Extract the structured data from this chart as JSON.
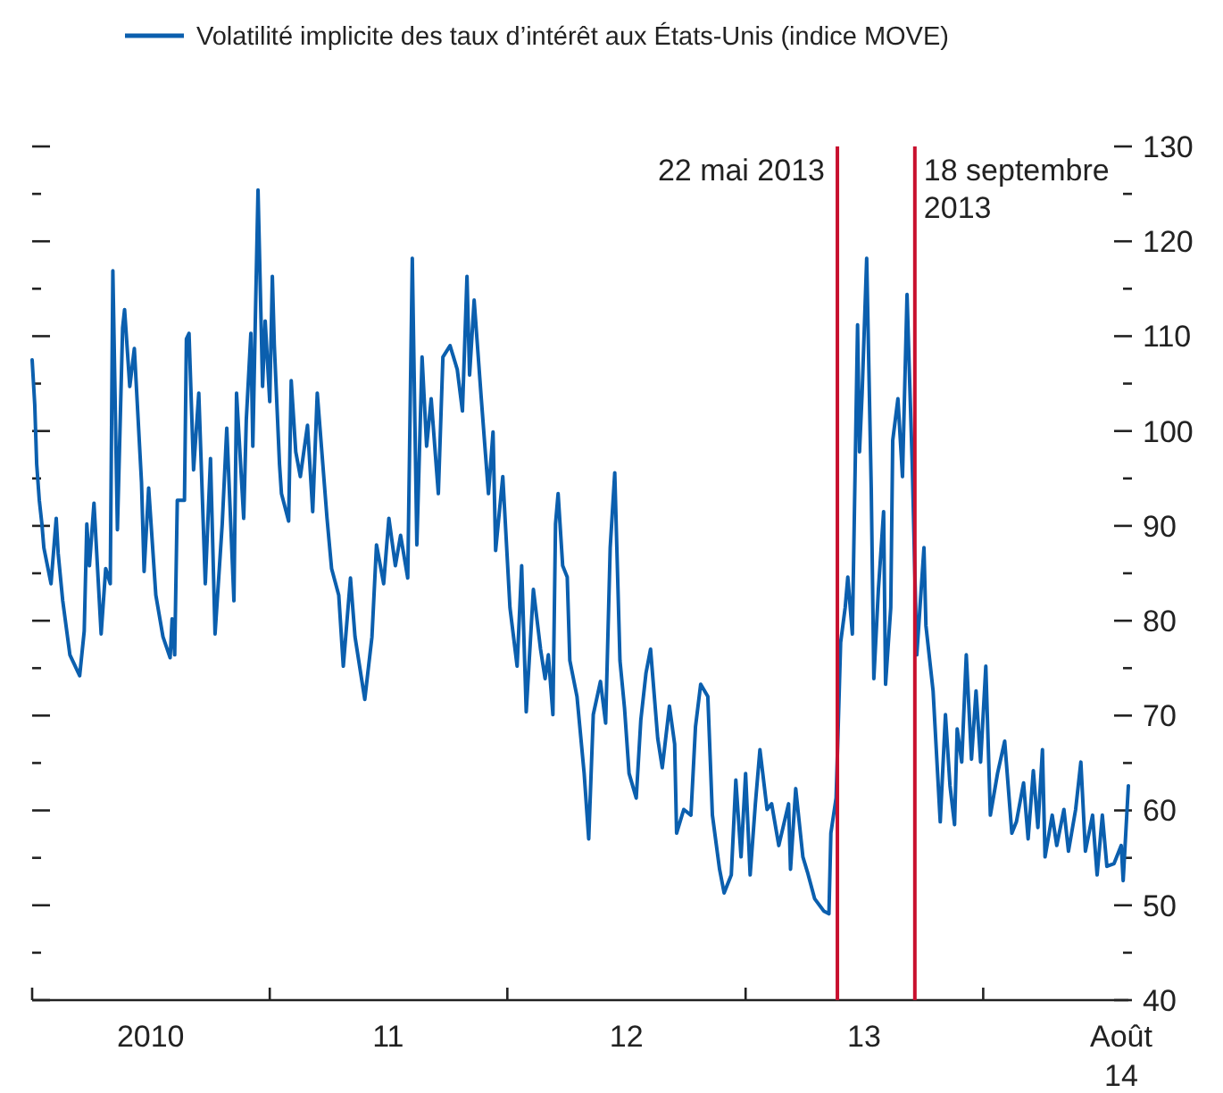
{
  "chart_data": {
    "type": "line",
    "legend": "top",
    "xlim": [
      "2010-01-01",
      "2014-08-12"
    ],
    "xticks": [
      {
        "value": "2010-01-01",
        "label": null
      },
      {
        "value": "2010-07-02",
        "label": "2010"
      },
      {
        "value": "2011-01-01",
        "label": null
      },
      {
        "value": "2011-07-02",
        "label": "11"
      },
      {
        "value": "2012-01-01",
        "label": null
      },
      {
        "value": "2012-07-02",
        "label": "12"
      },
      {
        "value": "2013-01-01",
        "label": null
      },
      {
        "value": "2013-07-02",
        "label": "13"
      },
      {
        "value": "2014-01-01",
        "label": null
      },
      {
        "value": "2014-08-01",
        "label": "Août\n14"
      }
    ],
    "ylim": [
      40,
      130
    ],
    "yticks": [
      40,
      {
        "value": 45,
        "label": null
      },
      50,
      {
        "value": 55,
        "label": null
      },
      60,
      {
        "value": 65,
        "label": null
      },
      70,
      {
        "value": 75,
        "label": null
      },
      80,
      {
        "value": 85,
        "label": null
      },
      90,
      {
        "value": 95,
        "label": null
      },
      100,
      {
        "value": 105,
        "label": null
      },
      110,
      {
        "value": 115,
        "label": null
      },
      120,
      {
        "value": 125,
        "label": null
      },
      130
    ],
    "ref_lines": [
      {
        "axis": "x",
        "value": "2013-05-22",
        "label": "22 mai 2013",
        "color": "#c8102e"
      },
      {
        "axis": "x",
        "value": "2013-09-18",
        "label": "18 septembre\n2013",
        "color": "#c8102e"
      }
    ],
    "x": [
      "2010-01-01",
      "2010-01-05",
      "2010-01-08",
      "2010-01-12",
      "2010-01-16",
      "2010-01-19",
      "2010-01-30",
      "2010-02-07",
      "2010-02-10",
      "2010-02-17",
      "2010-02-28",
      "2010-03-15",
      "2010-03-22",
      "2010-03-26",
      "2010-03-30",
      "2010-04-06",
      "2010-04-17",
      "2010-04-24",
      "2010-05-01",
      "2010-05-05",
      "2010-05-12",
      "2010-05-20",
      "2010-05-23",
      "2010-05-31",
      "2010-06-07",
      "2010-06-18",
      "2010-06-22",
      "2010-06-29",
      "2010-07-10",
      "2010-07-21",
      "2010-08-01",
      "2010-08-04",
      "2010-08-08",
      "2010-08-12",
      "2010-08-23",
      "2010-08-26",
      "2010-08-30",
      "2010-09-06",
      "2010-09-14",
      "2010-09-24",
      "2010-10-02",
      "2010-10-09",
      "2010-10-20",
      "2010-10-27",
      "2010-11-07",
      "2010-11-11",
      "2010-11-22",
      "2010-11-26",
      "2010-12-03",
      "2010-12-06",
      "2010-12-10",
      "2010-12-14",
      "2010-12-21",
      "2010-12-25",
      "2011-01-01",
      "2011-01-05",
      "2011-01-08",
      "2011-01-16",
      "2011-01-19",
      "2011-01-30",
      "2011-02-03",
      "2011-02-10",
      "2011-02-17",
      "2011-02-28",
      "2011-03-08",
      "2011-03-15",
      "2011-03-30",
      "2011-04-06",
      "2011-04-17",
      "2011-04-24",
      "2011-05-05",
      "2011-05-12",
      "2011-05-27",
      "2011-06-07",
      "2011-06-14",
      "2011-06-25",
      "2011-07-03",
      "2011-07-13",
      "2011-07-21",
      "2011-08-01",
      "2011-08-08",
      "2011-08-12",
      "2011-08-15",
      "2011-08-23",
      "2011-08-30",
      "2011-09-06",
      "2011-09-17",
      "2011-09-24",
      "2011-10-05",
      "2011-10-16",
      "2011-10-24",
      "2011-10-31",
      "2011-11-04",
      "2011-11-11",
      "2011-11-22",
      "2011-12-03",
      "2011-12-10",
      "2011-12-14",
      "2011-12-25",
      "2012-01-05",
      "2012-01-16",
      "2012-01-23",
      "2012-01-30",
      "2012-02-10",
      "2012-02-21",
      "2012-02-28",
      "2012-03-04",
      "2012-03-11",
      "2012-03-15",
      "2012-03-19",
      "2012-03-26",
      "2012-04-02",
      "2012-04-06",
      "2012-04-17",
      "2012-04-28",
      "2012-05-05",
      "2012-05-12",
      "2012-05-23",
      "2012-05-31",
      "2012-06-07",
      "2012-06-14",
      "2012-06-22",
      "2012-06-29",
      "2012-07-06",
      "2012-07-17",
      "2012-07-24",
      "2012-08-01",
      "2012-08-08",
      "2012-08-19",
      "2012-08-26",
      "2012-09-06",
      "2012-09-14",
      "2012-09-17",
      "2012-09-28",
      "2012-10-09",
      "2012-10-16",
      "2012-10-24",
      "2012-11-04",
      "2012-11-11",
      "2012-11-22",
      "2012-11-29",
      "2012-12-10",
      "2012-12-17",
      "2012-12-25",
      "2013-01-01",
      "2013-01-08",
      "2013-01-16",
      "2013-01-23",
      "2013-02-03",
      "2013-02-10",
      "2013-02-21",
      "2013-03-08",
      "2013-03-11",
      "2013-03-19",
      "2013-03-30",
      "2013-04-06",
      "2013-04-17",
      "2013-05-01",
      "2013-05-09",
      "2013-05-12",
      "2013-05-20",
      "2013-05-23",
      "2013-05-27",
      "2013-06-03",
      "2013-06-07",
      "2013-06-14",
      "2013-06-22",
      "2013-06-25",
      "2013-06-29",
      "2013-07-06",
      "2013-07-13",
      "2013-07-17",
      "2013-07-24",
      "2013-08-01",
      "2013-08-04",
      "2013-08-12",
      "2013-08-15",
      "2013-08-23",
      "2013-08-30",
      "2013-09-06",
      "2013-09-10",
      "2013-09-14",
      "2013-09-21",
      "2013-10-02",
      "2013-10-05",
      "2013-10-16",
      "2013-10-27",
      "2013-11-04",
      "2013-11-11",
      "2013-11-18",
      "2013-11-22",
      "2013-11-29",
      "2013-12-06",
      "2013-12-14",
      "2013-12-21",
      "2013-12-28",
      "2014-01-05",
      "2014-01-12",
      "2014-01-23",
      "2014-02-03",
      "2014-02-14",
      "2014-02-21",
      "2014-03-04",
      "2014-03-11",
      "2014-03-19",
      "2014-03-26",
      "2014-04-02",
      "2014-04-06",
      "2014-04-17",
      "2014-04-24",
      "2014-05-05",
      "2014-05-12",
      "2014-05-23",
      "2014-05-31",
      "2014-06-07",
      "2014-06-18",
      "2014-06-25",
      "2014-07-03",
      "2014-07-10",
      "2014-07-21",
      "2014-08-01",
      "2014-08-04",
      "2014-08-12"
    ],
    "series": [
      {
        "name": "Volatilité implicite des taux d’intérêt aux États-Unis (indice MOVE)",
        "color": "#0b5fae",
        "values": [
          107.5,
          102.8,
          96.5,
          92.7,
          90.2,
          87.7,
          83.9,
          90.8,
          87.1,
          82.1,
          76.4,
          74.2,
          78.9,
          90.2,
          85.8,
          92.4,
          78.6,
          85.5,
          83.9,
          116.9,
          89.6,
          110.9,
          112.8,
          104.7,
          108.7,
          94.6,
          85.2,
          94,
          82.7,
          78.3,
          76.1,
          80.2,
          76.4,
          92.7,
          92.7,
          109.7,
          110.3,
          95.9,
          104,
          83.9,
          97.1,
          78.6,
          90.2,
          100.3,
          82.1,
          104,
          90.8,
          101.2,
          110.3,
          98.4,
          112.2,
          125.4,
          104.7,
          111.6,
          103.1,
          116.3,
          109.1,
          96.5,
          93.4,
          90.5,
          105.3,
          97.8,
          95.2,
          100.6,
          91.5,
          104,
          90.8,
          85.5,
          82.7,
          75.2,
          84.5,
          78.3,
          71.7,
          78.3,
          88,
          83.9,
          90.8,
          85.8,
          89,
          84.5,
          118.2,
          100.9,
          88,
          107.8,
          98.4,
          103.4,
          93.4,
          107.8,
          109,
          106.5,
          102.1,
          116.3,
          105.9,
          113.8,
          103.4,
          93.4,
          99.9,
          87.4,
          95.2,
          81.4,
          75.2,
          85.8,
          70.4,
          83.3,
          77,
          73.9,
          76.4,
          70.1,
          90.2,
          93.4,
          85.8,
          84.6,
          75.8,
          72,
          63.9,
          57,
          70.1,
          73.6,
          69.2,
          87.7,
          95.6,
          75.8,
          70.8,
          63.9,
          61.3,
          69.5,
          74.5,
          77,
          67.6,
          64.5,
          71,
          67,
          57.6,
          60.1,
          59.5,
          68.8,
          73.3,
          72,
          59.5,
          53.8,
          51.3,
          53.2,
          63.2,
          55.1,
          63.9,
          53.2,
          60.7,
          66.4,
          60.1,
          60.7,
          56.3,
          60.7,
          53.8,
          62.3,
          55.1,
          53.5,
          50.7,
          49.4,
          49.1,
          57.6,
          61.3,
          68.2,
          77.7,
          81.4,
          84.6,
          78.6,
          111.2,
          97.8,
          104,
          118.2,
          94,
          73.9,
          83.3,
          91.5,
          73.3,
          81.4,
          99,
          103.4,
          95.2,
          114.4,
          105.3,
          96.5,
          76.4,
          87.7,
          79.5,
          72.6,
          58.8,
          70.1,
          62.6,
          58.5,
          68.6,
          65.1,
          76.4,
          65.4,
          72.6,
          65.1,
          75.2,
          59.5,
          63.9,
          67.3,
          57.6,
          58.8,
          62.9,
          57,
          64.2,
          58.2,
          66.4,
          55.1,
          59.5,
          56.3,
          60.1,
          55.7,
          60.1,
          65.1,
          55.7,
          59.5,
          53.2,
          59.5,
          54.1,
          54.4,
          56.3,
          52.6,
          62.6
        ]
      }
    ]
  }
}
